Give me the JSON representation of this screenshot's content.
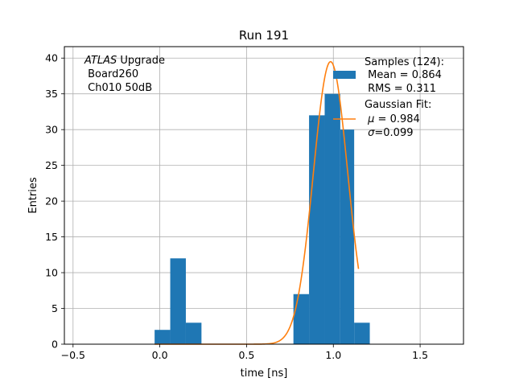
{
  "chart_data": {
    "type": "histogram",
    "title": "Run 191",
    "xlabel": "time [ns]",
    "ylabel": "Entries",
    "xlim": [
      -0.55,
      1.75
    ],
    "ylim": [
      0,
      41.6
    ],
    "grid": true,
    "x_ticks": [
      -0.5,
      0.0,
      0.5,
      1.0,
      1.5
    ],
    "x_tick_labels": [
      "−0.5",
      "0.0",
      "0.5",
      "1.0",
      "1.5"
    ],
    "y_ticks": [
      0,
      5,
      10,
      15,
      20,
      25,
      30,
      35,
      40
    ],
    "y_tick_labels": [
      "0",
      "5",
      "10",
      "15",
      "20",
      "25",
      "30",
      "35",
      "40"
    ],
    "bins": [
      {
        "x0": -0.03,
        "x1": 0.06,
        "count": 2
      },
      {
        "x0": 0.06,
        "x1": 0.15,
        "count": 12
      },
      {
        "x0": 0.15,
        "x1": 0.24,
        "count": 3
      },
      {
        "x0": 0.77,
        "x1": 0.86,
        "count": 7
      },
      {
        "x0": 0.86,
        "x1": 0.95,
        "count": 32
      },
      {
        "x0": 0.95,
        "x1": 1.04,
        "count": 35
      },
      {
        "x0": 1.04,
        "x1": 1.12,
        "count": 30
      },
      {
        "x0": 1.12,
        "x1": 1.21,
        "count": 3
      }
    ],
    "fit": {
      "mu": 0.984,
      "sigma": 0.099,
      "amplitude": 39.5,
      "x_range": [
        -0.03,
        1.145
      ]
    },
    "bar_color": "#1f77b4",
    "fit_color": "#ff7f0e",
    "legend_position": "top-right",
    "annotation": {
      "italic": "ATLAS",
      "rest": " Upgrade",
      "line2": " Board260",
      "line3": " Ch010 50dB"
    },
    "legend": {
      "samples_title": "Samples (124):",
      "samples_line1": " Mean = 0.864",
      "samples_line2": " RMS = 0.311",
      "fit_title": "Gaussian Fit:",
      "fit_mu_symbol": "μ",
      "fit_mu_text": " = 0.984",
      "fit_sigma_symbol": "σ",
      "fit_sigma_text": "=0.099"
    }
  }
}
